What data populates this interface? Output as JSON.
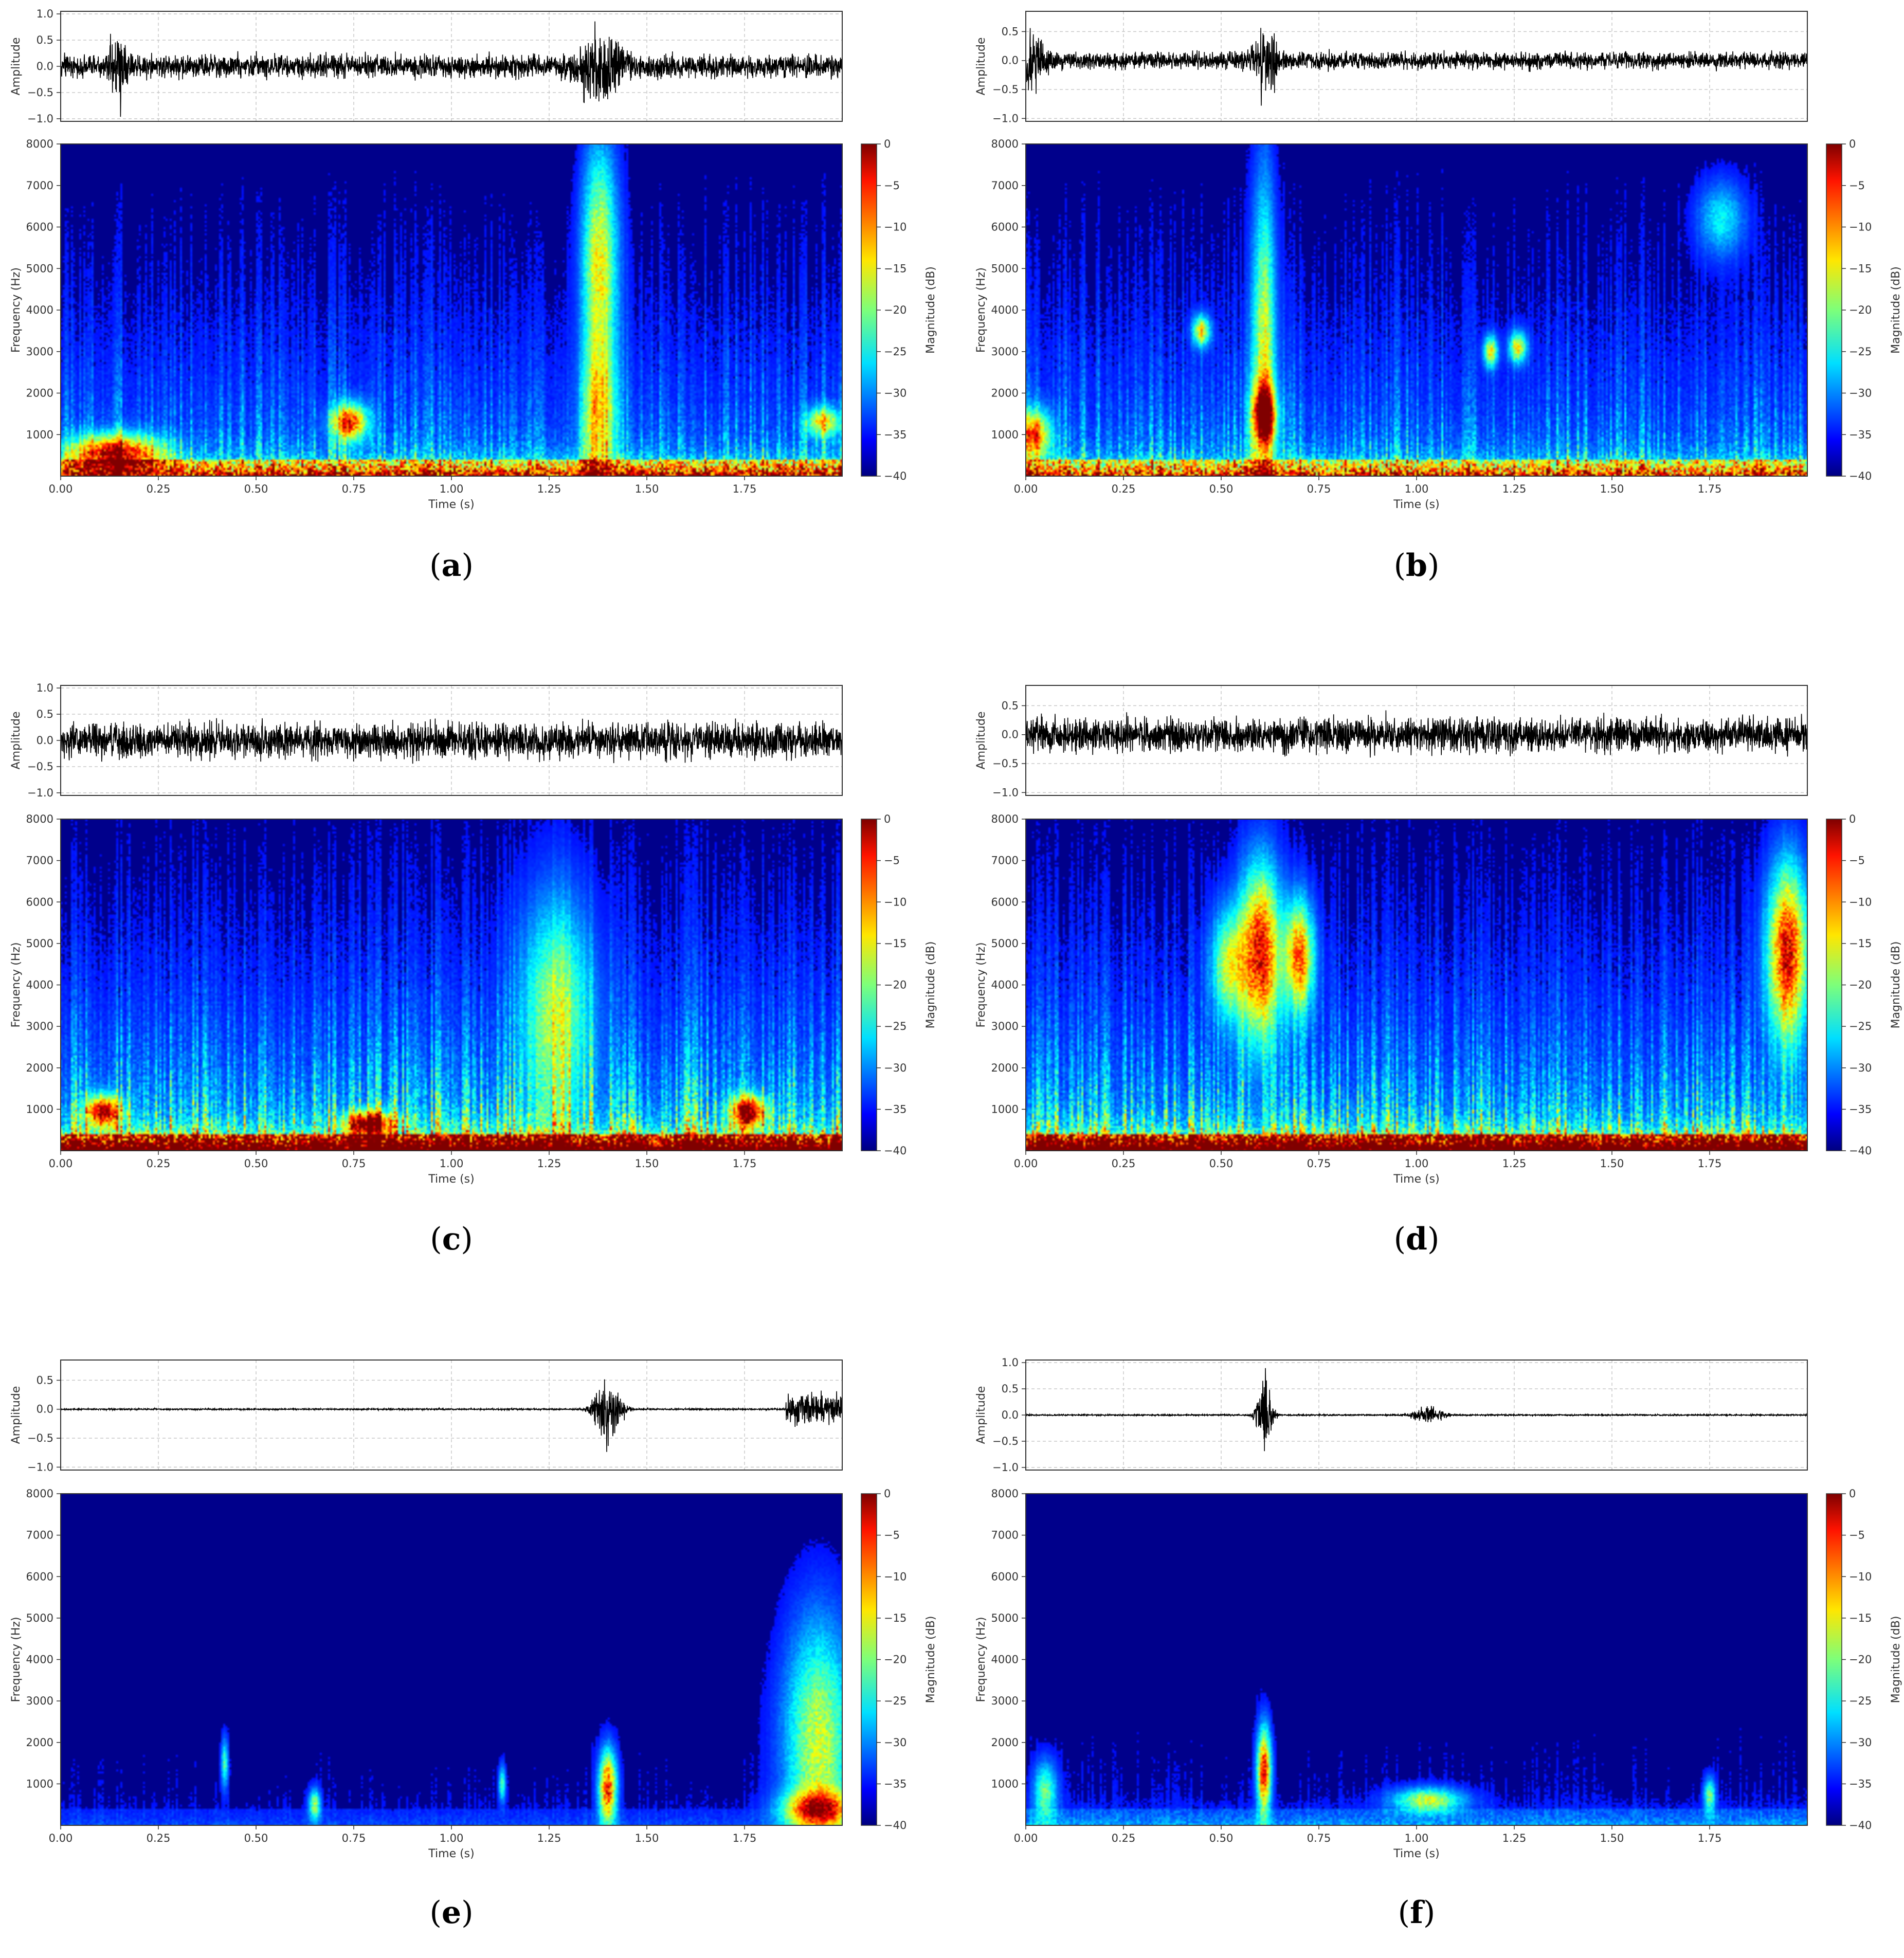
{
  "figure": {
    "background": "#ffffff",
    "waveform_color": "#000000",
    "spectrogram_background": "#00008b",
    "colormap": "jet"
  },
  "chart_data": [
    {
      "panel": "a",
      "label_letter": "a",
      "type": "heatmap",
      "waveform": {
        "ylabel": "Amplitude",
        "yticks": [
          "1.0",
          "0.5",
          "0.0",
          "−0.5",
          "−1.0"
        ],
        "ylim": [
          -1.05,
          1.05
        ],
        "noise_level": 0.33,
        "events": [
          {
            "t": 0.15,
            "amp": 0.95,
            "width": 0.02
          },
          {
            "t": 1.38,
            "amp": 0.9,
            "width": 0.05
          }
        ]
      },
      "spectrogram": {
        "ylabel": "Frequency (Hz)",
        "xlabel": "Time (s)",
        "yticks": [
          "1000",
          "2000",
          "3000",
          "4000",
          "5000",
          "6000",
          "7000",
          "8000"
        ],
        "xticks": [
          "0.00",
          "0.25",
          "0.50",
          "0.75",
          "1.00",
          "1.25",
          "1.50",
          "1.75"
        ],
        "xlim": [
          0,
          2.0
        ],
        "ylim": [
          0,
          8000
        ],
        "colorbar_label": "Magnitude (dB)",
        "colorbar_ticks": [
          "0",
          "−5",
          "−10",
          "−15",
          "−20",
          "−25",
          "−30",
          "−35",
          "−40"
        ],
        "colorbar_range": [
          -40,
          0
        ],
        "base_floor": 0.55,
        "density": 0.35,
        "hotspots": [
          {
            "t": 1.38,
            "f": 5200,
            "dt": 0.03,
            "df": 1900,
            "mag": 0.6
          },
          {
            "t": 1.38,
            "f": 1500,
            "dt": 0.03,
            "df": 1200,
            "mag": 0.5
          },
          {
            "t": 0.14,
            "f": 550,
            "dt": 0.08,
            "df": 300,
            "mag": 0.85
          },
          {
            "t": 0.74,
            "f": 1300,
            "dt": 0.03,
            "df": 300,
            "mag": 0.8
          },
          {
            "t": 1.95,
            "f": 1300,
            "dt": 0.03,
            "df": 250,
            "mag": 0.55
          }
        ]
      }
    },
    {
      "panel": "b",
      "label_letter": "b",
      "type": "heatmap",
      "waveform": {
        "ylabel": "Amplitude",
        "yticks": [
          "0.5",
          "0.0",
          "−0.5",
          "−1.0"
        ],
        "ylim": [
          -1.05,
          0.85
        ],
        "noise_level": 0.22,
        "events": [
          {
            "t": 0.02,
            "amp": 0.7,
            "width": 0.03
          },
          {
            "t": 0.61,
            "amp": 0.85,
            "width": 0.03
          }
        ]
      },
      "spectrogram": {
        "ylabel": "Frequency (Hz)",
        "xlabel": "Time (s)",
        "yticks": [
          "1000",
          "2000",
          "3000",
          "4000",
          "5000",
          "6000",
          "7000",
          "8000"
        ],
        "xticks": [
          "0.00",
          "0.25",
          "0.50",
          "0.75",
          "1.00",
          "1.25",
          "1.50",
          "1.75"
        ],
        "xlim": [
          0,
          2.0
        ],
        "ylim": [
          0,
          8000
        ],
        "colorbar_label": "Magnitude (dB)",
        "colorbar_ticks": [
          "0",
          "−5",
          "−10",
          "−15",
          "−20",
          "−25",
          "−30",
          "−35",
          "−40"
        ],
        "colorbar_range": [
          -40,
          0
        ],
        "base_floor": 0.5,
        "density": 0.35,
        "hotspots": [
          {
            "t": 0.61,
            "f": 3000,
            "dt": 0.02,
            "df": 2800,
            "mag": 0.55
          },
          {
            "t": 0.61,
            "f": 1500,
            "dt": 0.02,
            "df": 500,
            "mag": 0.95
          },
          {
            "t": 0.45,
            "f": 3500,
            "dt": 0.015,
            "df": 250,
            "mag": 0.6
          },
          {
            "t": 1.19,
            "f": 3000,
            "dt": 0.012,
            "df": 250,
            "mag": 0.6
          },
          {
            "t": 1.26,
            "f": 3100,
            "dt": 0.015,
            "df": 250,
            "mag": 0.6
          },
          {
            "t": 1.78,
            "f": 6200,
            "dt": 0.04,
            "df": 600,
            "mag": 0.3
          },
          {
            "t": 0.02,
            "f": 1000,
            "dt": 0.03,
            "df": 400,
            "mag": 0.7
          }
        ]
      }
    },
    {
      "panel": "c",
      "label_letter": "c",
      "type": "heatmap",
      "waveform": {
        "ylabel": "Amplitude",
        "yticks": [
          "1.0",
          "0.5",
          "0.0",
          "−0.5",
          "−1.0"
        ],
        "ylim": [
          -1.05,
          1.05
        ],
        "noise_level": 0.5,
        "events": []
      },
      "spectrogram": {
        "ylabel": "Frequency (Hz)",
        "xlabel": "Time (s)",
        "yticks": [
          "1000",
          "2000",
          "3000",
          "4000",
          "5000",
          "6000",
          "7000",
          "8000"
        ],
        "xticks": [
          "0.00",
          "0.25",
          "0.50",
          "0.75",
          "1.00",
          "1.25",
          "1.50",
          "1.75"
        ],
        "xlim": [
          0,
          2.0
        ],
        "ylim": [
          0,
          8000
        ],
        "colorbar_label": "Magnitude (dB)",
        "colorbar_ticks": [
          "0",
          "−5",
          "−10",
          "−15",
          "−20",
          "−25",
          "−30",
          "−35",
          "−40"
        ],
        "colorbar_range": [
          -40,
          0
        ],
        "base_floor": 0.85,
        "density": 0.6,
        "hotspots": [
          {
            "t": 1.27,
            "f": 3500,
            "dt": 0.06,
            "df": 1800,
            "mag": 0.45
          },
          {
            "t": 0.11,
            "f": 950,
            "dt": 0.03,
            "df": 250,
            "mag": 0.9
          },
          {
            "t": 0.79,
            "f": 650,
            "dt": 0.04,
            "df": 200,
            "mag": 0.9
          },
          {
            "t": 1.76,
            "f": 950,
            "dt": 0.03,
            "df": 250,
            "mag": 0.9
          }
        ]
      }
    },
    {
      "panel": "d",
      "label_letter": "d",
      "type": "heatmap",
      "waveform": {
        "ylabel": "Amplitude",
        "yticks": [
          "0.5",
          "0.0",
          "−0.5",
          "−1.0"
        ],
        "ylim": [
          -1.05,
          0.85
        ],
        "noise_level": 0.45,
        "events": []
      },
      "spectrogram": {
        "ylabel": "Frequency (Hz)",
        "xlabel": "Time (s)",
        "yticks": [
          "1000",
          "2000",
          "3000",
          "4000",
          "5000",
          "6000",
          "7000",
          "8000"
        ],
        "xticks": [
          "0.00",
          "0.25",
          "0.50",
          "0.75",
          "1.00",
          "1.25",
          "1.50",
          "1.75"
        ],
        "xlim": [
          0,
          2.0
        ],
        "ylim": [
          0,
          8000
        ],
        "colorbar_label": "Magnitude (dB)",
        "colorbar_ticks": [
          "0",
          "−5",
          "−10",
          "−15",
          "−20",
          "−25",
          "−30",
          "−35",
          "−40"
        ],
        "colorbar_range": [
          -40,
          0
        ],
        "base_floor": 0.9,
        "density": 0.55,
        "hotspots": [
          {
            "t": 0.6,
            "f": 4800,
            "dt": 0.035,
            "df": 1400,
            "mag": 0.9
          },
          {
            "t": 0.7,
            "f": 4700,
            "dt": 0.025,
            "df": 900,
            "mag": 0.75
          },
          {
            "t": 0.52,
            "f": 4500,
            "dt": 0.03,
            "df": 900,
            "mag": 0.5
          },
          {
            "t": 1.95,
            "f": 4800,
            "dt": 0.035,
            "df": 1400,
            "mag": 0.9
          }
        ]
      }
    },
    {
      "panel": "e",
      "label_letter": "e",
      "type": "heatmap",
      "waveform": {
        "ylabel": "Amplitude",
        "yticks": [
          "0.5",
          "0.0",
          "−0.5",
          "−1.0"
        ],
        "ylim": [
          -1.05,
          0.85
        ],
        "noise_level": 0.02,
        "events": [
          {
            "t": 1.4,
            "amp": 0.85,
            "width": 0.025
          },
          {
            "t": 1.94,
            "amp": 0.4,
            "width": 0.12,
            "burst": true
          }
        ]
      },
      "spectrogram": {
        "ylabel": "Frequency (Hz)",
        "xlabel": "Time (s)",
        "yticks": [
          "1000",
          "2000",
          "3000",
          "4000",
          "5000",
          "6000",
          "7000",
          "8000"
        ],
        "xticks": [
          "0.00",
          "0.25",
          "0.50",
          "0.75",
          "1.00",
          "1.25",
          "1.50",
          "1.75"
        ],
        "xlim": [
          0,
          2.0
        ],
        "ylim": [
          0,
          8000
        ],
        "colorbar_label": "Magnitude (dB)",
        "colorbar_ticks": [
          "0",
          "−5",
          "−10",
          "−15",
          "−20",
          "−25",
          "−30",
          "−35",
          "−40"
        ],
        "colorbar_range": [
          -40,
          0
        ],
        "base_floor": 0.05,
        "density": 0.04,
        "hotspots": [
          {
            "t": 1.4,
            "f": 900,
            "dt": 0.015,
            "df": 600,
            "mag": 0.9
          },
          {
            "t": 1.94,
            "f": 2000,
            "dt": 0.06,
            "df": 2000,
            "mag": 0.55
          },
          {
            "t": 1.94,
            "f": 400,
            "dt": 0.06,
            "df": 300,
            "mag": 0.7
          },
          {
            "t": 0.65,
            "f": 500,
            "dt": 0.01,
            "df": 250,
            "mag": 0.5
          },
          {
            "t": 0.42,
            "f": 1500,
            "dt": 0.006,
            "df": 400,
            "mag": 0.4
          },
          {
            "t": 1.13,
            "f": 1000,
            "dt": 0.006,
            "df": 300,
            "mag": 0.4
          }
        ]
      }
    },
    {
      "panel": "f",
      "label_letter": "f",
      "type": "heatmap",
      "waveform": {
        "ylabel": "Amplitude",
        "yticks": [
          "1.0",
          "0.5",
          "0.0",
          "−0.5",
          "−1.0"
        ],
        "ylim": [
          -1.05,
          1.05
        ],
        "noise_level": 0.02,
        "events": [
          {
            "t": 0.61,
            "amp": 0.95,
            "width": 0.015
          },
          {
            "t": 1.03,
            "amp": 0.25,
            "width": 0.03
          }
        ]
      },
      "spectrogram": {
        "ylabel": "Frequency (Hz)",
        "xlabel": "Time (s)",
        "yticks": [
          "1000",
          "2000",
          "3000",
          "4000",
          "5000",
          "6000",
          "7000",
          "8000"
        ],
        "xticks": [
          "0.00",
          "0.25",
          "0.50",
          "0.75",
          "1.00",
          "1.25",
          "1.50",
          "1.75"
        ],
        "xlim": [
          0,
          2.0
        ],
        "ylim": [
          0,
          8000
        ],
        "colorbar_label": "Magnitude (dB)",
        "colorbar_ticks": [
          "0",
          "−5",
          "−10",
          "−15",
          "−20",
          "−25",
          "−30",
          "−35",
          "−40"
        ],
        "colorbar_range": [
          -40,
          0
        ],
        "base_floor": 0.12,
        "density": 0.05,
        "hotspots": [
          {
            "t": 0.61,
            "f": 1300,
            "dt": 0.012,
            "df": 700,
            "mag": 0.9
          },
          {
            "t": 1.03,
            "f": 600,
            "dt": 0.06,
            "df": 200,
            "mag": 0.55
          },
          {
            "t": 0.05,
            "f": 800,
            "dt": 0.02,
            "df": 500,
            "mag": 0.45
          },
          {
            "t": 1.75,
            "f": 700,
            "dt": 0.01,
            "df": 300,
            "mag": 0.45
          }
        ]
      }
    }
  ]
}
